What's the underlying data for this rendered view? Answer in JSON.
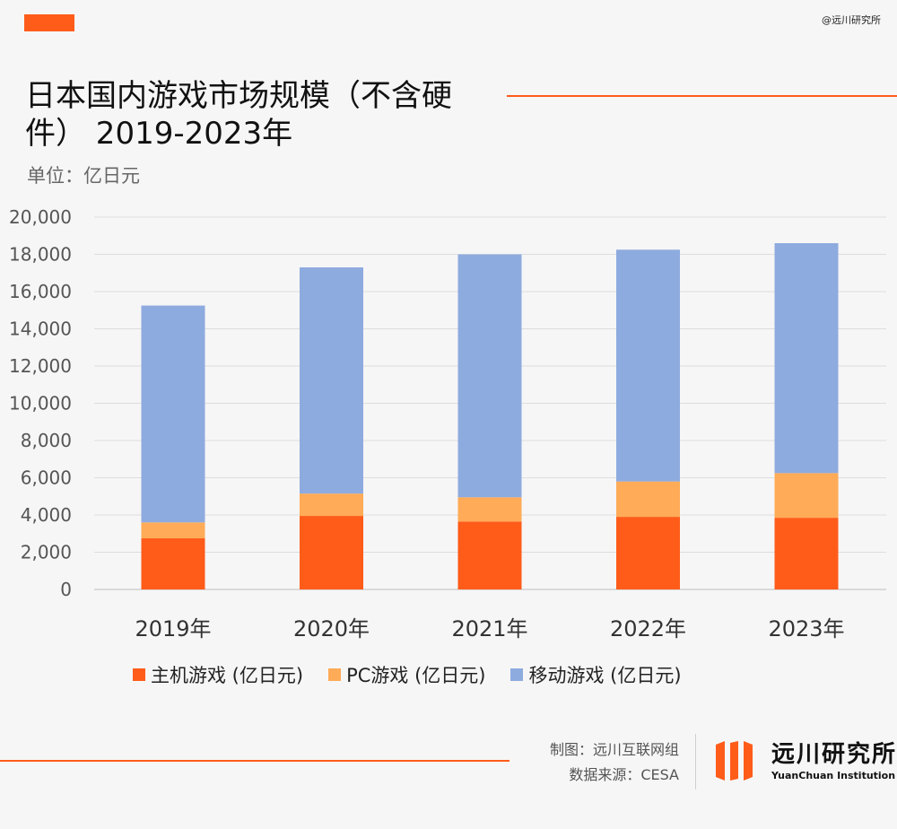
{
  "watermark": "@远川研究所",
  "title": "日本国内游戏市场规模（不含硬件） 2019-2023年",
  "unit": "单位：亿日元",
  "colors": {
    "accent": "#ff5c1a",
    "console": "#ff5c1a",
    "pc": "#ffab57",
    "mobile": "#8eabdf"
  },
  "chart_data": {
    "type": "bar",
    "stacked": true,
    "title": "日本国内游戏市场规模（不含硬件） 2019-2023年",
    "ylabel": "单位：亿日元",
    "xlabel": "",
    "ylim": [
      0,
      20000
    ],
    "yticks": [
      "0",
      "2,000",
      "4,000",
      "6,000",
      "8,000",
      "10,000",
      "12,000",
      "14,000",
      "16,000",
      "18,000",
      "20,000"
    ],
    "categories": [
      "2019年",
      "2020年",
      "2021年",
      "2022年",
      "2023年"
    ],
    "series": [
      {
        "name": "主机游戏 (亿日元)",
        "values": [
          2750,
          3950,
          3650,
          3900,
          3850
        ]
      },
      {
        "name": "PC游戏 (亿日元)",
        "values": [
          850,
          1200,
          1300,
          1900,
          2400
        ]
      },
      {
        "name": "移动游戏 (亿日元)",
        "values": [
          11650,
          12150,
          13050,
          12450,
          12350
        ]
      }
    ],
    "legend": "bottom"
  },
  "footer": {
    "made_by": "制图：远川互联网组",
    "source": "数据来源：CESA"
  },
  "logo": {
    "name_cn": "远川研究所",
    "name_en": "YuanChuan Institution"
  }
}
